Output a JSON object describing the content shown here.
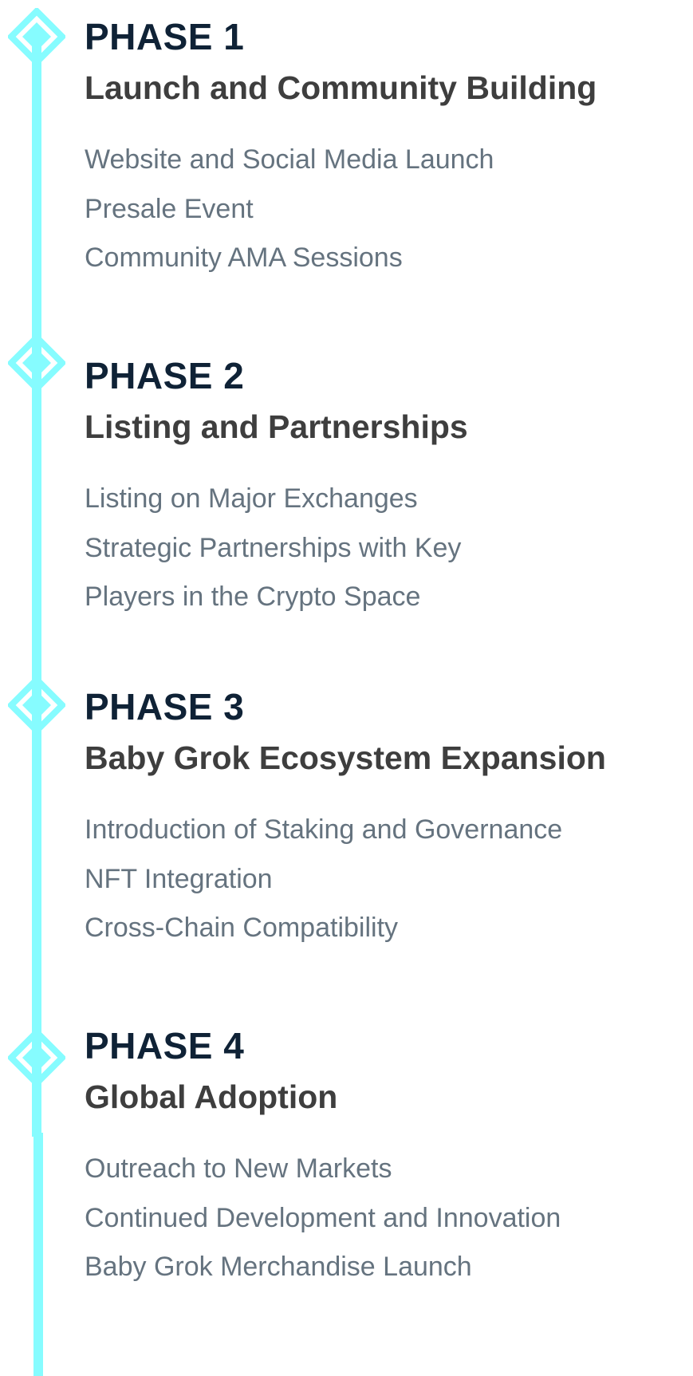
{
  "colors": {
    "accent": "#86fcff",
    "title": "#0f2236",
    "subtitle": "#3e3e3e",
    "item": "#65737f",
    "background": "#ffffff"
  },
  "phases": [
    {
      "title": "PHASE 1",
      "subtitle": "Launch and Community Building",
      "items": [
        "Website and Social Media Launch",
        "Presale Event",
        "Community AMA Sessions"
      ]
    },
    {
      "title": "PHASE 2",
      "subtitle": "Listing and Partnerships",
      "items": [
        "Listing on Major Exchanges",
        "Strategic Partnerships with Key",
        "Players in the Crypto Space"
      ]
    },
    {
      "title": "PHASE 3",
      "subtitle": "Baby Grok Ecosystem Expansion",
      "items": [
        "Introduction of Staking and Governance",
        "NFT Integration",
        "Cross-Chain Compatibility"
      ]
    },
    {
      "title": "PHASE 4",
      "subtitle": "Global Adoption",
      "items": [
        "Outreach to New Markets",
        "Continued Development and Innovation",
        "Baby Grok Merchandise Launch"
      ]
    }
  ]
}
